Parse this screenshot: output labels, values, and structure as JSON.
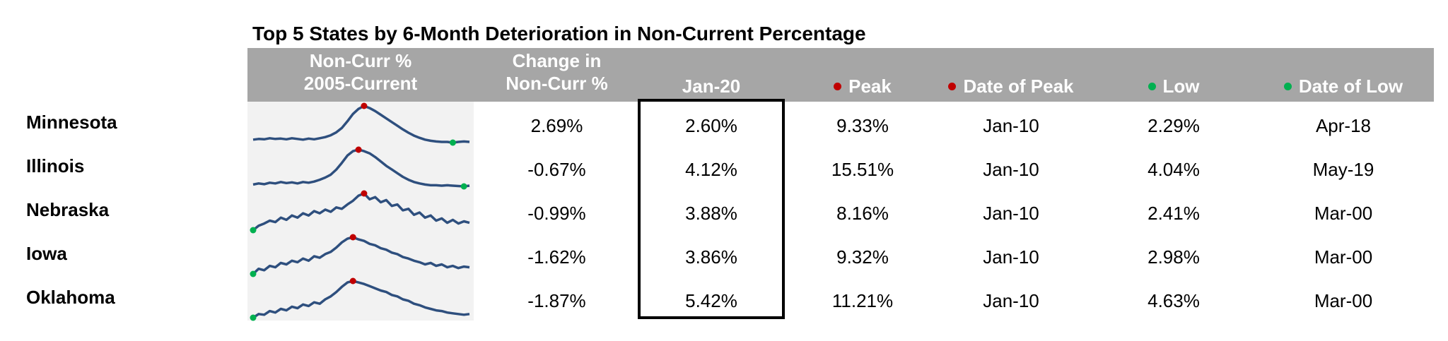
{
  "title": "Top 5 States by 6-Month Deterioration in Non-Current Percentage",
  "headers": {
    "sparkline_line1": "Non-Curr %",
    "sparkline_line2": "2005-Current",
    "change_line1": "Change in",
    "change_line2": "Non-Curr %",
    "current": "Jan-20",
    "peak": "Peak",
    "date_of_peak": "Date of Peak",
    "low": "Low",
    "date_of_low": "Date of Low"
  },
  "colors": {
    "header_bg": "#a6a6a6",
    "sparkline_line": "#2e4f7e",
    "peak_marker": "#c00000",
    "low_marker": "#00b050",
    "sparkline_bg": "#f2f2f2"
  },
  "rows": [
    {
      "state": "Minnesota",
      "change": "2.69%",
      "current": "2.60%",
      "peak": "9.33%",
      "date_of_peak": "Jan-10",
      "low": "2.29%",
      "date_of_low": "Apr-18"
    },
    {
      "state": "Illinois",
      "change": "-0.67%",
      "current": "4.12%",
      "peak": "15.51%",
      "date_of_peak": "Jan-10",
      "low": "4.04%",
      "date_of_low": "May-19"
    },
    {
      "state": "Nebraska",
      "change": "-0.99%",
      "current": "3.88%",
      "peak": "8.16%",
      "date_of_peak": "Jan-10",
      "low": "2.41%",
      "date_of_low": "Mar-00"
    },
    {
      "state": "Iowa",
      "change": "-1.62%",
      "current": "3.86%",
      "peak": "9.32%",
      "date_of_peak": "Jan-10",
      "low": "2.98%",
      "date_of_low": "Mar-00"
    },
    {
      "state": "Oklahoma",
      "change": "-1.87%",
      "current": "5.42%",
      "peak": "11.21%",
      "date_of_peak": "Jan-10",
      "low": "4.63%",
      "date_of_low": "Mar-00"
    }
  ],
  "chart_data": {
    "type": "table",
    "columns": [
      "Non-Curr % 2005-Current",
      "Change in Non-Curr %",
      "Jan-20",
      "Peak",
      "Date of Peak",
      "Low",
      "Date of Low"
    ],
    "sparklines": [
      {
        "state": "Minnesota",
        "values": [
          0.08,
          0.1,
          0.09,
          0.12,
          0.1,
          0.11,
          0.09,
          0.12,
          0.1,
          0.08,
          0.11,
          0.09,
          0.12,
          0.15,
          0.2,
          0.28,
          0.4,
          0.58,
          0.78,
          0.92,
          1.0,
          0.94,
          0.86,
          0.76,
          0.66,
          0.56,
          0.46,
          0.36,
          0.27,
          0.19,
          0.13,
          0.08,
          0.05,
          0.03,
          0.02,
          0.02,
          0.0,
          0.02,
          0.03,
          0.02
        ],
        "peak_index": 20,
        "low_index": 36
      },
      {
        "state": "Illinois",
        "values": [
          0.05,
          0.08,
          0.06,
          0.1,
          0.08,
          0.12,
          0.09,
          0.11,
          0.08,
          0.12,
          0.1,
          0.13,
          0.18,
          0.24,
          0.32,
          0.46,
          0.64,
          0.84,
          0.96,
          1.0,
          0.96,
          0.9,
          0.8,
          0.68,
          0.56,
          0.46,
          0.36,
          0.26,
          0.18,
          0.12,
          0.08,
          0.05,
          0.03,
          0.03,
          0.02,
          0.03,
          0.02,
          0.01,
          0.0,
          0.02
        ],
        "peak_index": 19,
        "low_index": 38
      },
      {
        "state": "Nebraska",
        "values": [
          0.0,
          0.12,
          0.18,
          0.26,
          0.22,
          0.34,
          0.28,
          0.4,
          0.34,
          0.46,
          0.4,
          0.52,
          0.46,
          0.56,
          0.5,
          0.62,
          0.58,
          0.7,
          0.8,
          0.94,
          1.0,
          0.84,
          0.9,
          0.76,
          0.82,
          0.66,
          0.7,
          0.54,
          0.58,
          0.42,
          0.48,
          0.34,
          0.4,
          0.26,
          0.32,
          0.2,
          0.28,
          0.18,
          0.24,
          0.2
        ],
        "peak_index": 20,
        "low_index": 0
      },
      {
        "state": "Iowa",
        "values": [
          0.0,
          0.14,
          0.1,
          0.22,
          0.18,
          0.3,
          0.26,
          0.36,
          0.32,
          0.42,
          0.36,
          0.48,
          0.44,
          0.54,
          0.6,
          0.72,
          0.86,
          0.96,
          1.0,
          0.94,
          0.9,
          0.82,
          0.78,
          0.7,
          0.66,
          0.58,
          0.54,
          0.46,
          0.42,
          0.36,
          0.32,
          0.26,
          0.3,
          0.22,
          0.26,
          0.18,
          0.22,
          0.16,
          0.2,
          0.18
        ],
        "peak_index": 18,
        "low_index": 0
      },
      {
        "state": "Oklahoma",
        "values": [
          0.0,
          0.1,
          0.08,
          0.18,
          0.14,
          0.24,
          0.2,
          0.3,
          0.26,
          0.36,
          0.32,
          0.42,
          0.38,
          0.5,
          0.58,
          0.7,
          0.84,
          0.96,
          1.0,
          0.96,
          0.92,
          0.86,
          0.8,
          0.74,
          0.7,
          0.62,
          0.58,
          0.5,
          0.46,
          0.38,
          0.34,
          0.28,
          0.24,
          0.2,
          0.18,
          0.14,
          0.12,
          0.1,
          0.08,
          0.1
        ],
        "peak_index": 18,
        "low_index": 0
      }
    ]
  }
}
